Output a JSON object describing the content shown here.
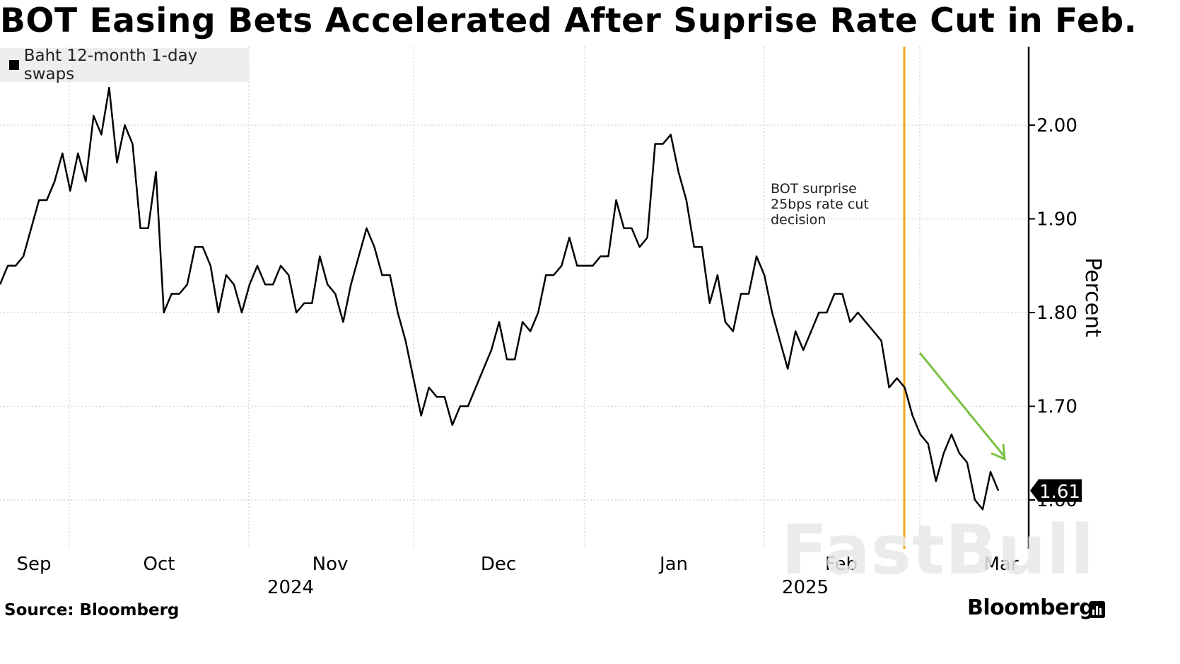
{
  "title": "BOT Easing Bets Accelerated After Suprise Rate Cut in Feb.",
  "source": "Source: Bloomberg",
  "brand": "Bloomberg",
  "watermark": "FastBull",
  "colors": {
    "line": "#000000",
    "event_line": "#f5a623",
    "trend_arrow": "#7ac143",
    "grid": "#cfcfcf"
  },
  "chart_data": {
    "type": "line",
    "series": [
      {
        "name": "Baht 12-month 1-day swaps",
        "values": [
          1.83,
          1.85,
          1.85,
          1.86,
          1.89,
          1.92,
          1.92,
          1.94,
          1.97,
          1.93,
          1.97,
          1.94,
          2.01,
          1.99,
          2.04,
          1.96,
          2.0,
          1.98,
          1.89,
          1.89,
          1.95,
          1.8,
          1.82,
          1.82,
          1.83,
          1.87,
          1.87,
          1.85,
          1.8,
          1.84,
          1.83,
          1.8,
          1.83,
          1.85,
          1.83,
          1.83,
          1.85,
          1.84,
          1.8,
          1.81,
          1.81,
          1.86,
          1.83,
          1.82,
          1.79,
          1.83,
          1.86,
          1.89,
          1.87,
          1.84,
          1.84,
          1.8,
          1.77,
          1.73,
          1.69,
          1.72,
          1.71,
          1.71,
          1.68,
          1.7,
          1.7,
          1.72,
          1.74,
          1.76,
          1.79,
          1.75,
          1.75,
          1.79,
          1.78,
          1.8,
          1.84,
          1.84,
          1.85,
          1.88,
          1.85,
          1.85,
          1.85,
          1.86,
          1.86,
          1.92,
          1.89,
          1.89,
          1.87,
          1.88,
          1.98,
          1.98,
          1.99,
          1.95,
          1.92,
          1.87,
          1.87,
          1.81,
          1.84,
          1.79,
          1.78,
          1.82,
          1.82,
          1.86,
          1.84,
          1.8,
          1.77,
          1.74,
          1.78,
          1.76,
          1.78,
          1.8,
          1.8,
          1.82,
          1.82,
          1.79,
          1.8,
          1.79,
          1.78,
          1.77,
          1.72,
          1.73,
          1.72,
          1.69,
          1.67,
          1.66,
          1.62,
          1.65,
          1.67,
          1.65,
          1.64,
          1.6,
          1.59,
          1.63,
          1.61
        ],
        "last_value_label": "1.61"
      }
    ],
    "x_labels": [
      "Sep",
      "Oct",
      "Nov",
      "Dec",
      "Jan",
      "Feb",
      "Mar"
    ],
    "year_labels": [
      "2024",
      "2025"
    ],
    "y_ticks": [
      "2.00",
      "1.90",
      "1.80",
      "1.70",
      "1.60"
    ],
    "ylim": [
      1.55,
      2.08
    ],
    "ylabel": "Percent",
    "legend": {
      "label": "Baht 12-month 1-day swaps",
      "position": "top-left"
    },
    "annotations": [
      {
        "text_lines": [
          "BOT surprise",
          "25bps rate cut",
          "decision"
        ],
        "type": "vertical-event-line"
      },
      {
        "type": "downward-trend-arrow"
      }
    ],
    "grid": true
  }
}
